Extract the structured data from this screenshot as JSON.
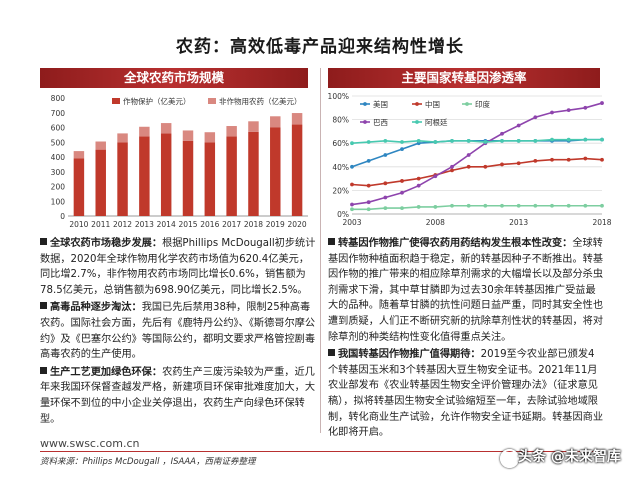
{
  "page": {
    "title": "农药：高效低毒产品迎来结构性增长",
    "url": "www.swsc.com.cn",
    "source": "资料来源：Phillips McDougall ，ISAAA，西南证券整理",
    "watermark": "头条 @未来智库"
  },
  "left_panel": {
    "banner": "全球农药市场规模",
    "bullets": [
      {
        "lead": "全球农药市场稳步发展：",
        "text": "根据Phillips McDougall初步统计数据，2020年全球作物用化学农药市场值为620.4亿美元，同比增2.7%，非作物用农药市场同比增长0.6%，销售额为78.5亿美元，总销售额为698.90亿美元，同比增长2.5%。"
      },
      {
        "lead": "高毒品种逐步淘汰：",
        "text": "我国已先后禁用38种，限制25种高毒农药。国际社会方面，先后有《鹿特丹公约》、《斯德哥尔摩公约》及《巴塞尔公约》等国际公约，都明文要求严格管控剧毒高毒农药的生产使用。"
      },
      {
        "lead": "生产工艺更加绿色环保：",
        "text": "农药生产三废污染较为严重，近几年来我国环保督查越发严格，新建项目环保审批难度加大，大量环保不到位的中小企业关停退出，农药生产向绿色环保转型。"
      }
    ]
  },
  "right_panel": {
    "banner": "主要国家转基因渗透率",
    "bullets": [
      {
        "lead": "转基因作物推广使得农药用药结构发生根本性改变：",
        "text": "全球转基因作物种植面积趋于稳定，新的转基因种子不断推出。转基因作物的推广带来的相应除草剂需求的大幅增长以及部分杀虫剂需求下滑，其中草甘膦即为过去30余年转基因推广受益最大的品种。随着草甘膦的抗性问题日益严重，同时其安全性也遭到质疑，人们正不断研究新的抗除草剂性状的转基因，将对除草剂的种类结构性变化值得重点关注。"
      },
      {
        "lead": "我国转基因作物推广值得期待：",
        "text": "2019至今农业部已颁发4个转基因玉米和3个转基因大豆生物安全证书。2021年11月农业部发布《农业转基因生物安全评价管理办法》（征求意见稿），拟将转基因生物安全试验缩短至一年，去除试验地域限制，转化商业生产试验，允许作物安全证书延期。转基因商业化即将开启。"
      }
    ]
  },
  "chart_data": [
    {
      "type": "bar",
      "title": "",
      "categories": [
        "2010",
        "2011",
        "2012",
        "2013",
        "2014",
        "2015",
        "2016",
        "2017",
        "2018",
        "2019",
        "2020"
      ],
      "series": [
        {
          "name": "作物保护（亿美元）",
          "color": "#c0392b",
          "values": [
            390,
            450,
            500,
            540,
            560,
            510,
            500,
            540,
            570,
            600,
            620
          ]
        },
        {
          "name": "非作物用农药（亿美元）",
          "color": "#d98880",
          "values": [
            50,
            55,
            60,
            65,
            70,
            70,
            68,
            70,
            72,
            76,
            78
          ]
        }
      ],
      "stacked": true,
      "ylim": [
        0,
        800
      ],
      "yticks": [
        0,
        100,
        200,
        300,
        400,
        500,
        600,
        700,
        800
      ],
      "legend": "top",
      "grid": false
    },
    {
      "type": "line",
      "title": "",
      "x": [
        2003,
        2004,
        2005,
        2006,
        2007,
        2008,
        2009,
        2010,
        2011,
        2012,
        2013,
        2014,
        2015,
        2016,
        2017,
        2018
      ],
      "xticks": [
        "2003",
        "2008",
        "2013",
        "2018"
      ],
      "series": [
        {
          "name": "美国",
          "color": "#2e86c1",
          "values": [
            40,
            45,
            50,
            55,
            60,
            61,
            62,
            62,
            62,
            62,
            62,
            62,
            62,
            62,
            63,
            63
          ]
        },
        {
          "name": "中国",
          "color": "#c0392b",
          "values": [
            25,
            24,
            26,
            28,
            30,
            33,
            37,
            40,
            40,
            42,
            43,
            45,
            46,
            46,
            47,
            46
          ]
        },
        {
          "name": "印度",
          "color": "#7dcea0",
          "values": [
            4,
            4,
            5,
            5,
            6,
            6,
            7,
            7,
            7,
            7,
            7,
            7,
            7,
            7,
            7,
            7
          ]
        },
        {
          "name": "巴西",
          "color": "#8e44ad",
          "values": [
            8,
            10,
            14,
            18,
            24,
            32,
            40,
            50,
            60,
            68,
            75,
            82,
            86,
            88,
            90,
            94
          ]
        },
        {
          "name": "阿根廷",
          "color": "#48c9b0",
          "values": [
            60,
            61,
            62,
            61,
            62,
            61,
            62,
            62,
            61,
            62,
            62,
            62,
            63,
            63,
            63,
            63
          ]
        }
      ],
      "ylim": [
        0,
        100
      ],
      "yticks": [
        "0%",
        "20%",
        "40%",
        "60%",
        "80%",
        "100%"
      ],
      "legend": "top-left",
      "grid": true
    }
  ]
}
